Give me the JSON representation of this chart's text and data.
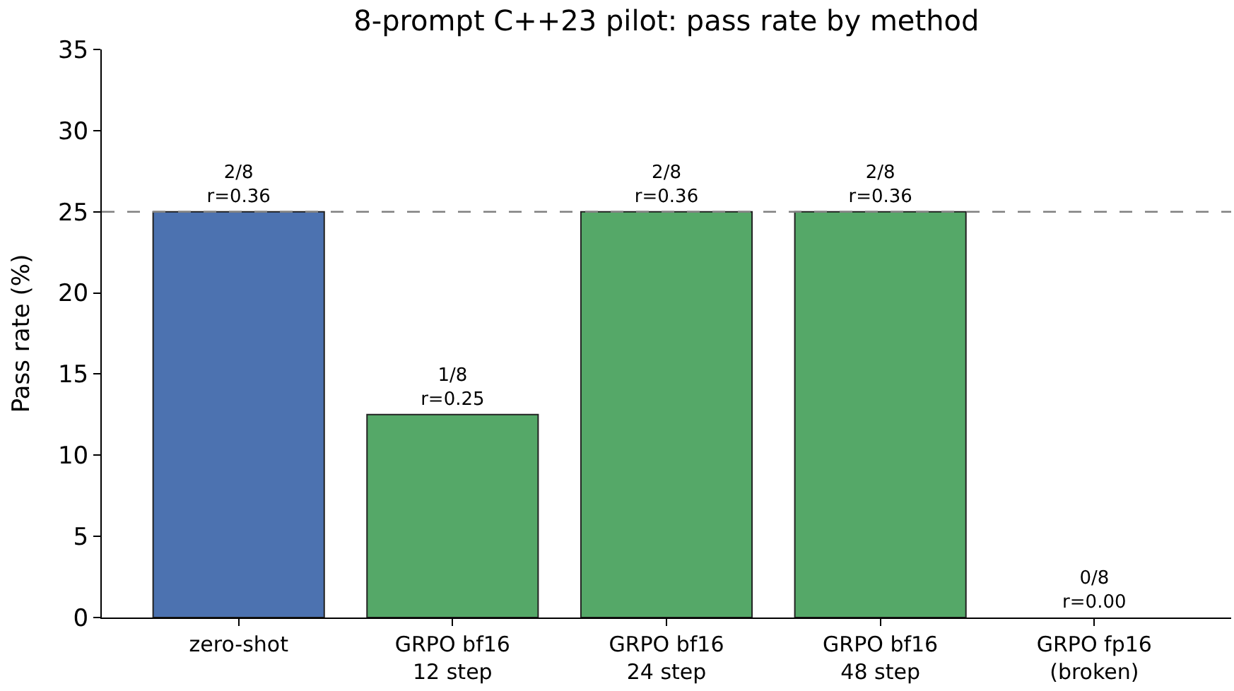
{
  "chart_data": {
    "type": "bar",
    "title": "8-prompt C++23 pilot: pass rate by method",
    "ylabel": "Pass rate (%)",
    "categories": [
      "zero-shot",
      "GRPO bf16\n12 step",
      "GRPO bf16\n24 step",
      "GRPO bf16\n48 step",
      "GRPO fp16\n(broken)"
    ],
    "values": [
      25,
      12.5,
      25,
      25,
      0
    ],
    "colors": [
      "#4c72b0",
      "#55a868",
      "#55a868",
      "#55a868",
      "#55a868"
    ],
    "value_labels": [
      "2/8\nr=0.36",
      "1/8\nr=0.25",
      "2/8\nr=0.36",
      "2/8\nr=0.36",
      "0/8\nr=0.00"
    ],
    "ylim": [
      0,
      35
    ],
    "yticks": [
      0,
      5,
      10,
      15,
      20,
      25,
      30,
      35
    ],
    "legend": false,
    "ref_lines": [
      {
        "axis": "y",
        "value": 25,
        "color": "#808080",
        "line_style": "dashed"
      }
    ]
  }
}
